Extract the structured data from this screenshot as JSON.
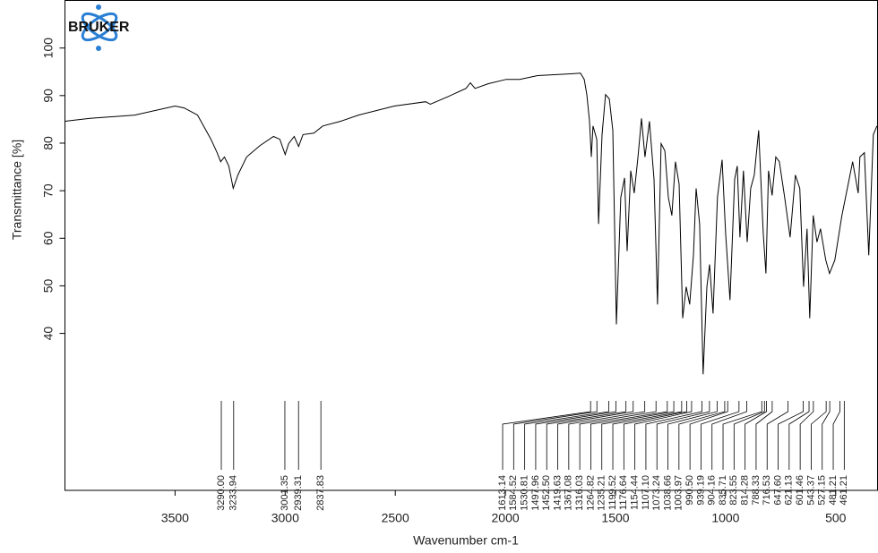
{
  "chart_data": {
    "type": "line",
    "brand": "BRUKER",
    "x_label": "Wavenumber cm-1",
    "y_label": "Transmittance [%]",
    "xlim": [
      4000,
      310
    ],
    "ylim": [
      7,
      110
    ],
    "xticks": [
      3500,
      3000,
      2500,
      2000,
      1500,
      1000,
      500
    ],
    "yticks": [
      40,
      50,
      60,
      70,
      80,
      90,
      100
    ],
    "color": "#000000",
    "x": [
      4000,
      3886,
      3683,
      3500,
      3459,
      3398,
      3337,
      3309,
      3293,
      3276,
      3256,
      3236,
      3215,
      3175,
      3114,
      3053,
      3024,
      3000,
      2984,
      2959,
      2939,
      2919,
      2870,
      2829,
      2748,
      2667,
      2504,
      2362,
      2341,
      2260,
      2179,
      2159,
      2138,
      2077,
      1996,
      1935,
      1854,
      1732,
      1659,
      1642,
      1630,
      1618,
      1610,
      1602,
      1585,
      1577,
      1561,
      1545,
      1528,
      1512,
      1496,
      1476,
      1459,
      1447,
      1431,
      1415,
      1398,
      1382,
      1366,
      1346,
      1325,
      1309,
      1293,
      1276,
      1260,
      1244,
      1228,
      1211,
      1195,
      1179,
      1163,
      1146,
      1134,
      1118,
      1102,
      1085,
      1073,
      1057,
      1037,
      1016,
      1000,
      980,
      959,
      947,
      935,
      919,
      902,
      886,
      870,
      850,
      829,
      817,
      805,
      789,
      772,
      756,
      732,
      707,
      683,
      663,
      646,
      630,
      618,
      602,
      585,
      569,
      545,
      528,
      504,
      472,
      439,
      423,
      398,
      390,
      370,
      350,
      329,
      313
    ],
    "values": [
      84.6,
      85.2,
      85.9,
      87.8,
      87.4,
      85.9,
      80.8,
      78.0,
      76.1,
      77.1,
      75.2,
      70.5,
      73.3,
      77.1,
      79.5,
      81.4,
      80.8,
      77.6,
      79.9,
      81.4,
      79.3,
      81.8,
      82.1,
      83.6,
      84.6,
      85.9,
      87.8,
      88.7,
      88.2,
      89.8,
      91.5,
      92.7,
      91.5,
      92.5,
      93.4,
      93.4,
      94.2,
      94.5,
      94.7,
      93.4,
      90.2,
      84.6,
      77.1,
      83.6,
      80.8,
      63.0,
      81.8,
      90.2,
      89.3,
      82.7,
      41.9,
      68.6,
      72.7,
      57.3,
      74.2,
      69.5,
      77.1,
      85.2,
      77.1,
      84.6,
      72.4,
      46.1,
      79.9,
      78.4,
      68.6,
      64.8,
      76.1,
      71.4,
      43.2,
      49.8,
      46.1,
      56.4,
      70.5,
      63.0,
      31.4,
      49.8,
      54.5,
      44.2,
      68.6,
      76.5,
      61.1,
      47.0,
      72.4,
      75.2,
      60.2,
      74.2,
      59.2,
      70.5,
      73.3,
      82.7,
      61.1,
      52.6,
      74.2,
      69.0,
      77.1,
      76.1,
      68.6,
      60.2,
      73.3,
      70.5,
      49.8,
      62.0,
      43.2,
      64.8,
      59.2,
      62.0,
      55.4,
      52.6,
      55.4,
      64.8,
      72.4,
      76.1,
      69.5,
      77.1,
      78.0,
      56.4,
      81.8,
      83.6
    ],
    "peaks": [
      {
        "value": 3290,
        "label": "3290.00"
      },
      3233.94,
      3001.35,
      2939.31,
      2837.83,
      1613.14,
      1584.52,
      1530.81,
      1497.96,
      {
        "value": 1452.5,
        "label": "1452.50"
      },
      1419.63,
      1367.08,
      1316.03,
      1264.82,
      1235.21,
      1199.52,
      1176.64,
      1154.44,
      {
        "value": 1107.1,
        "label": "1107.10"
      },
      1073.24,
      1038.66,
      1003.97,
      {
        "value": 990.5,
        "label": "990.50"
      },
      939.19,
      904.16,
      835.71,
      823.55,
      814.28,
      788.33,
      716.53,
      {
        "value": 647.6,
        "label": "647.60"
      },
      621.13,
      601.46,
      543.37,
      527.15,
      481.21,
      461.21
    ]
  }
}
